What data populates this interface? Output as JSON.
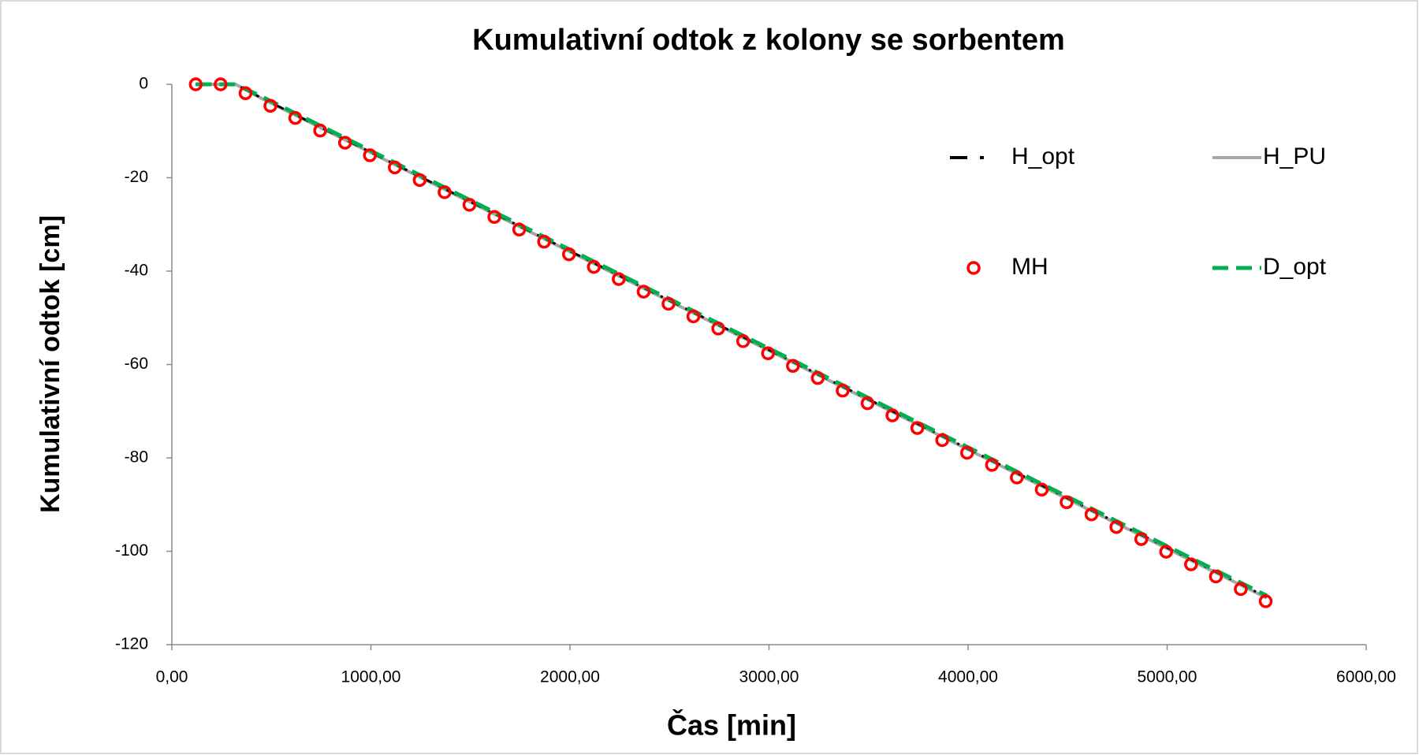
{
  "chart_data": {
    "type": "line",
    "title": "Kumulativní odtok z kolony se sorbentem",
    "x_label": "Čas [min]",
    "y_label": "Kumulativní odtok [cm]",
    "xlim": [
      0,
      6000
    ],
    "ylim": [
      -120,
      0
    ],
    "xticks": [
      {
        "value": 0,
        "label": "0,00"
      },
      {
        "value": 1000,
        "label": "1000,00"
      },
      {
        "value": 2000,
        "label": "2000,00"
      },
      {
        "value": 3000,
        "label": "3000,00"
      },
      {
        "value": 4000,
        "label": "4000,00"
      },
      {
        "value": 5000,
        "label": "5000,00"
      },
      {
        "value": 6000,
        "label": "6000,00"
      }
    ],
    "yticks": [
      0,
      -20,
      -40,
      -60,
      -80,
      -100,
      -120
    ],
    "grid": false,
    "legend": "upper right",
    "series": [
      {
        "name": "H_PU",
        "color": "#a6a6a6",
        "style": "solid",
        "x": [
          120,
          320,
          450,
          5500
        ],
        "values": [
          0,
          0,
          -3.0,
          -110.0
        ]
      },
      {
        "name": "H_opt",
        "color": "#000000",
        "style": "dashdot",
        "x": [
          120,
          320,
          450,
          5500
        ],
        "values": [
          0,
          0,
          -2.9,
          -109.8
        ]
      },
      {
        "name": "D_opt",
        "color": "#00b050",
        "style": "dashed",
        "x": [
          120,
          320,
          450,
          5500
        ],
        "values": [
          0,
          0,
          -2.6,
          -109.5
        ]
      },
      {
        "name": "MH",
        "color": "#ff0000",
        "style": "marker",
        "x": [
          120,
          245,
          370,
          495,
          620,
          745,
          870,
          995,
          1120,
          1245,
          1370,
          1495,
          1620,
          1745,
          1870,
          1995,
          2120,
          2245,
          2370,
          2495,
          2620,
          2745,
          2870,
          2995,
          3120,
          3245,
          3370,
          3495,
          3620,
          3745,
          3870,
          3995,
          4120,
          4245,
          4370,
          4495,
          4620,
          4745,
          4870,
          4995,
          5120,
          5245,
          5370,
          5495
        ],
        "values": [
          0,
          0,
          -1.9,
          -4.6,
          -7.2,
          -9.9,
          -12.5,
          -15.2,
          -17.8,
          -20.5,
          -23.1,
          -25.8,
          -28.4,
          -31.1,
          -33.7,
          -36.4,
          -39.1,
          -41.7,
          -44.4,
          -47.0,
          -49.7,
          -52.3,
          -55.0,
          -57.6,
          -60.3,
          -62.9,
          -65.6,
          -68.3,
          -70.9,
          -73.6,
          -76.2,
          -78.9,
          -81.5,
          -84.2,
          -86.8,
          -89.5,
          -92.1,
          -94.8,
          -97.4,
          -100.1,
          -102.8,
          -105.4,
          -108.1,
          -110.7
        ]
      }
    ]
  }
}
